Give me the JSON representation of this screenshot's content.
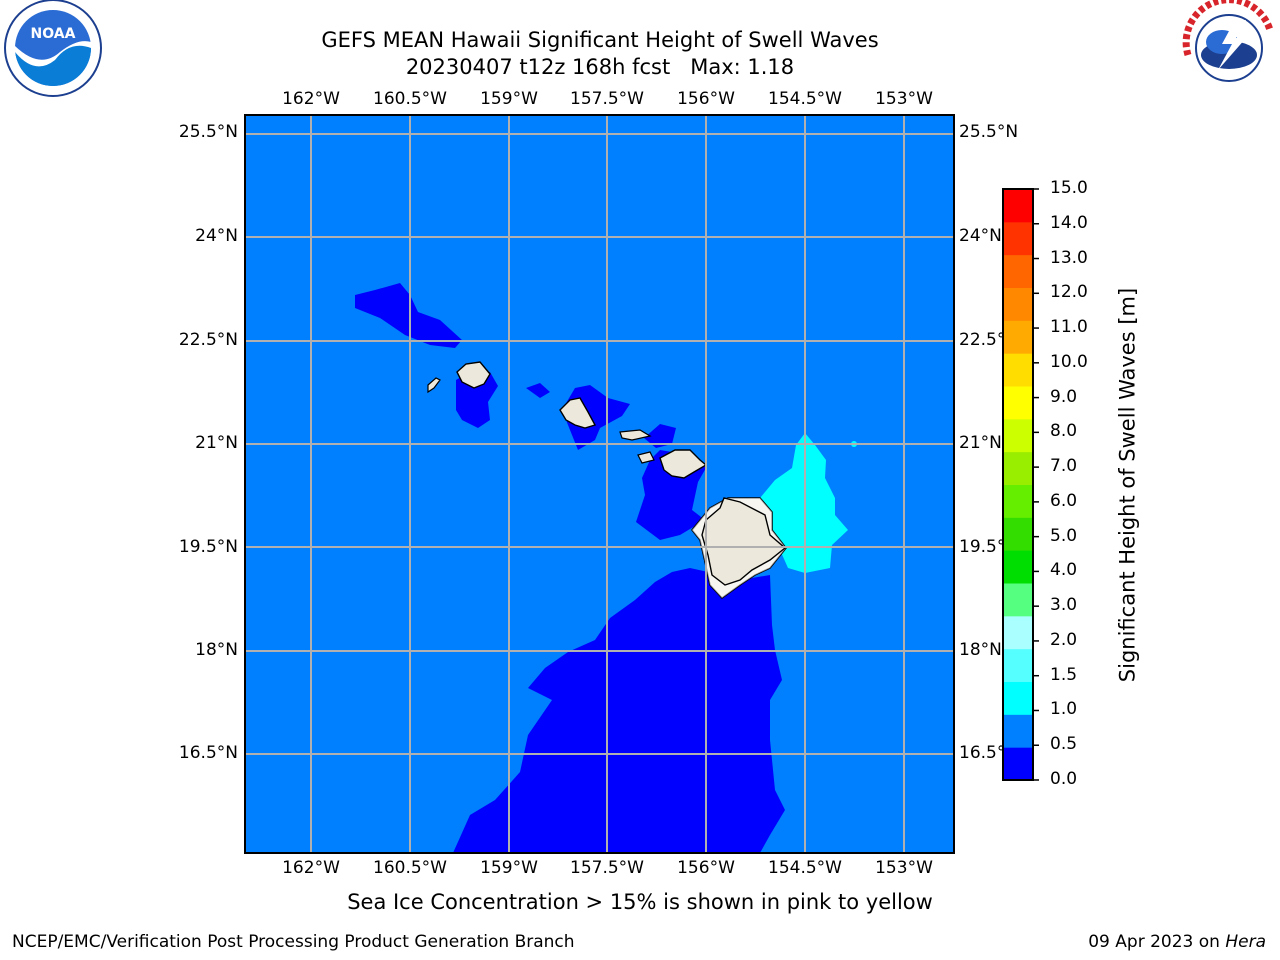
{
  "title": {
    "line1": "GEFS MEAN Hawaii Significant Height of Swell Waves",
    "line2": "20230407 t12z 168h fcst   Max: 1.18"
  },
  "map": {
    "lon_labels": [
      "162°W",
      "160.5°W",
      "159°W",
      "157.5°W",
      "156°W",
      "154.5°W",
      "153°W"
    ],
    "lat_labels": [
      "25.5°N",
      "24°N",
      "22.5°N",
      "21°N",
      "19.5°N",
      "18°N",
      "16.5°N"
    ],
    "colors": {
      "ocean_0_5_1_0": "#0080ff",
      "ocean_0_0_0_5": "#0000ff",
      "ocean_1_0_1_5": "#00ffff",
      "land": "#ece9dc",
      "grid": "#b0b0b0"
    }
  },
  "colorbar": {
    "labels": [
      "0.0",
      "0.5",
      "1.0",
      "1.5",
      "2.0",
      "3.0",
      "4.0",
      "5.0",
      "6.0",
      "7.0",
      "8.0",
      "9.0",
      "10.0",
      "11.0",
      "12.0",
      "13.0",
      "14.0",
      "15.0"
    ],
    "colors": [
      "#0000ff",
      "#0080ff",
      "#00ffff",
      "#55ffff",
      "#aaffff",
      "#55ff80",
      "#00dd00",
      "#33dd00",
      "#66ee00",
      "#99ee00",
      "#ccff00",
      "#ffff00",
      "#ffdd00",
      "#ffaa00",
      "#ff8800",
      "#ff6600",
      "#ff3300",
      "#ff0000"
    ],
    "title": "Significant Height of Swell Waves [m]"
  },
  "logos": {
    "noaa": "NOAA",
    "nws": "NATIONAL WEATHER SERVICE"
  },
  "note": "Sea Ice Concentration > 15% is shown in pink to yellow",
  "footer": {
    "left": "NCEP/EMC/Verification Post Processing Product Generation Branch",
    "right_prefix": "09 Apr 2023 on ",
    "right_host": "Hera"
  }
}
